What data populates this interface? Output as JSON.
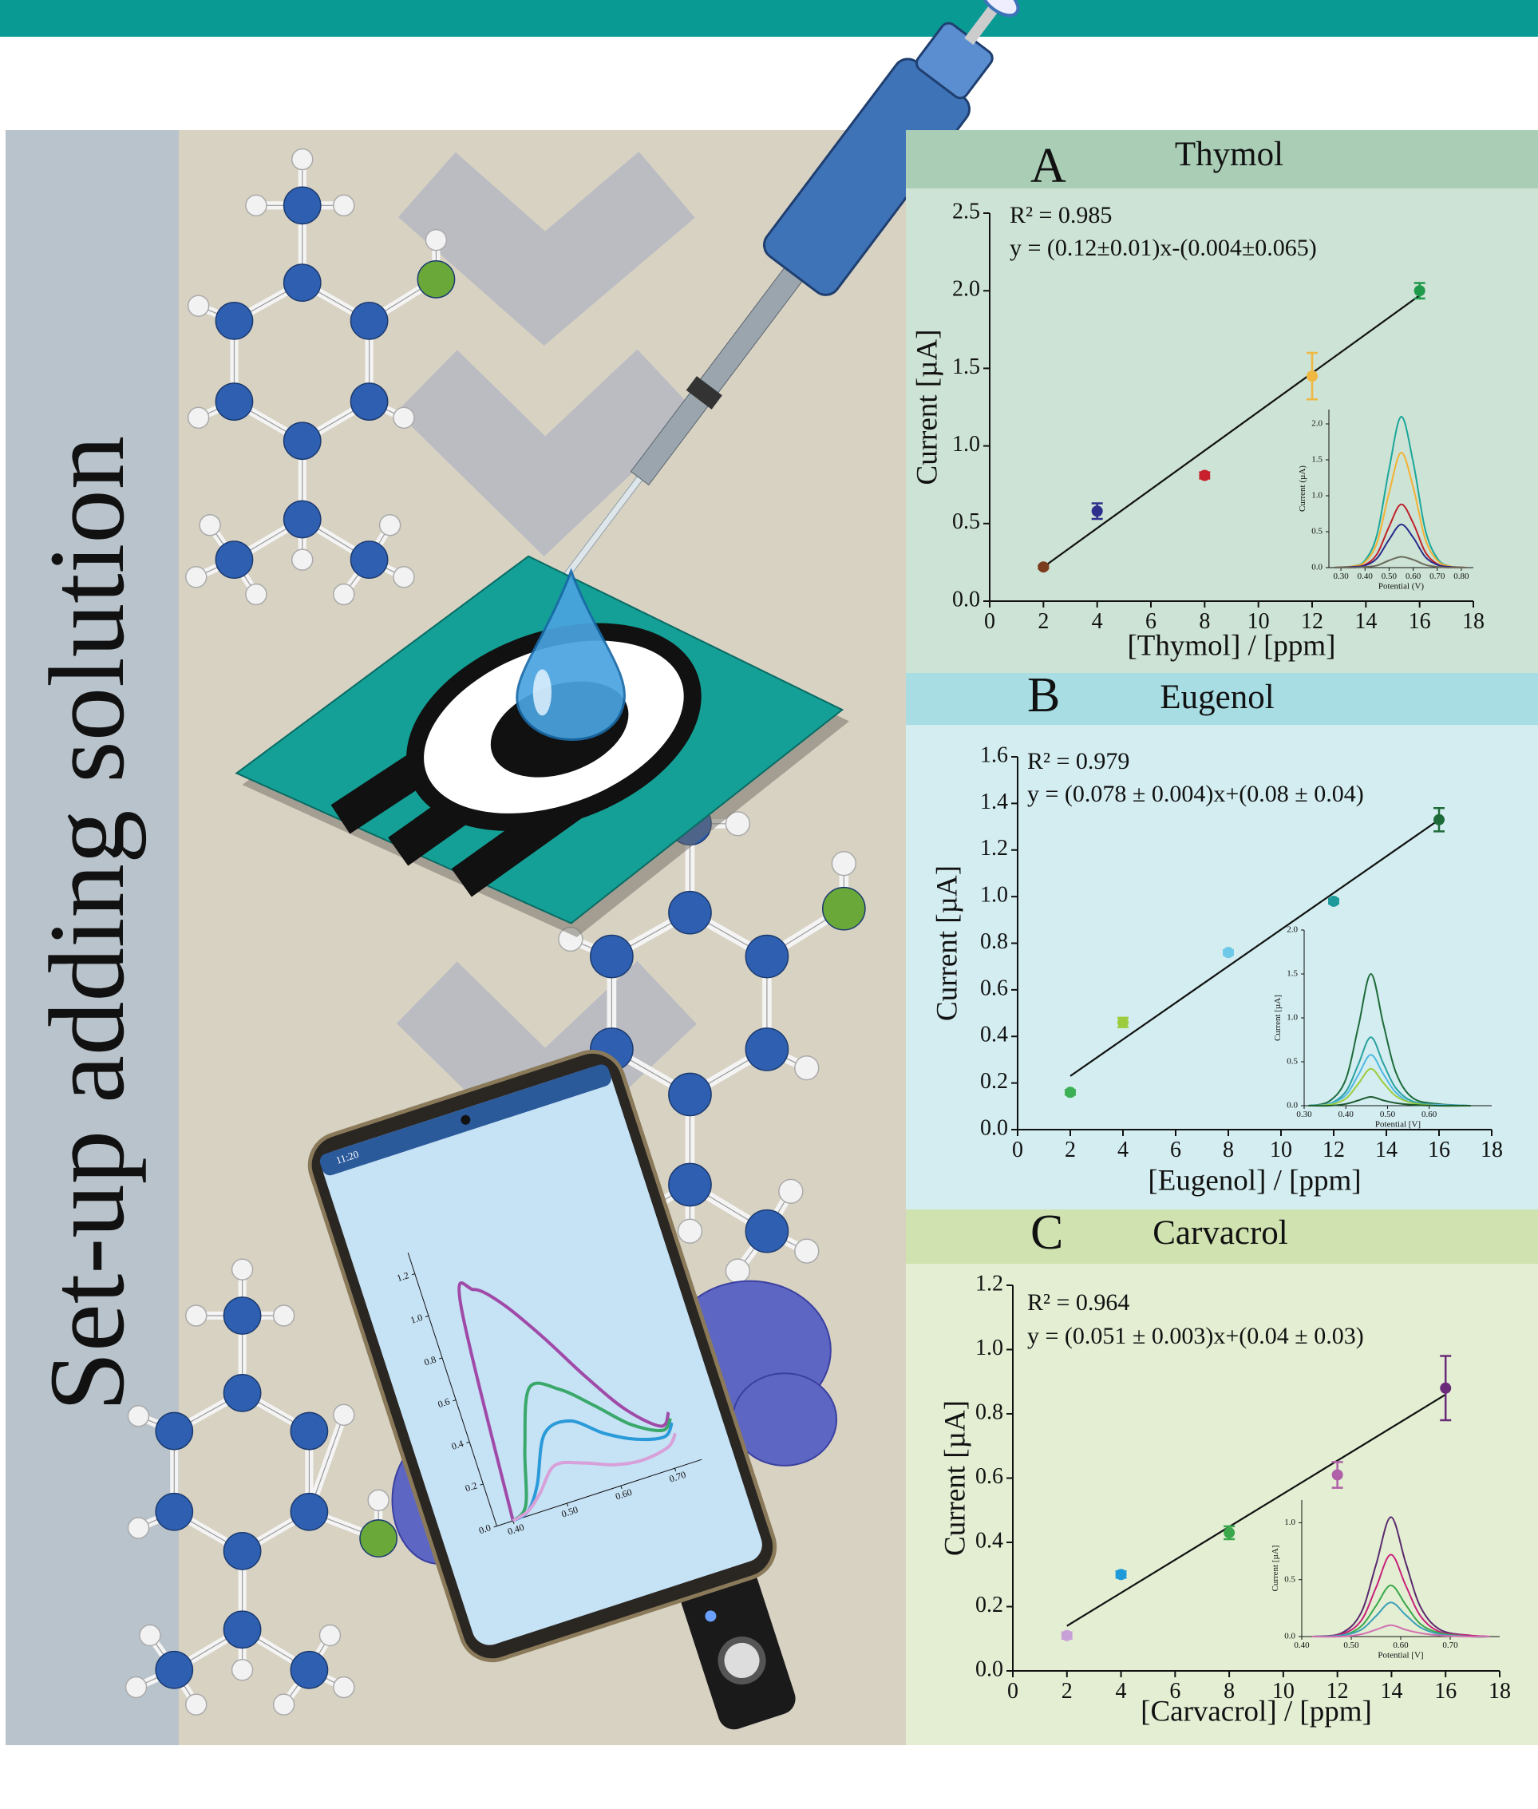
{
  "banner_text": "Set-up adding solution",
  "chart_data": [
    {
      "type": "scatter",
      "panel_label": "A",
      "title": "Thymol",
      "annotations": [
        "R² = 0.985",
        "y = (0.12±0.01)x-(0.004±0.065)"
      ],
      "xlabel": "[Thymol] / [ppm]",
      "ylabel": "Current [µA]",
      "x": [
        2,
        4,
        8,
        12,
        16
      ],
      "values": [
        0.22,
        0.58,
        0.81,
        1.45,
        2.0
      ],
      "errors": [
        0.01,
        0.05,
        0.02,
        0.15,
        0.05
      ],
      "colors": [
        "#7a3b1e",
        "#2e2e8c",
        "#c8202c",
        "#f0b840",
        "#1e9a4a"
      ],
      "fit": {
        "x": [
          2,
          16
        ],
        "values": [
          0.22,
          1.97
        ]
      },
      "xlim": [
        0,
        18
      ],
      "xticks": [
        0,
        2,
        4,
        6,
        8,
        10,
        12,
        14,
        16,
        18
      ],
      "ylim": [
        0,
        2.5
      ],
      "yticks": [
        {
          "value": 0,
          "label": "0.0"
        },
        0.5,
        {
          "value": 1,
          "label": "1.0"
        },
        1.5,
        {
          "value": 2,
          "label": "2.0"
        },
        2.5
      ]
    },
    {
      "type": "line",
      "xlabel": "Potential (V)",
      "ylabel": "Current (µA)",
      "xlim": [
        0.25,
        0.85
      ],
      "xticks": [
        {
          "value": 0.3,
          "label": "0.30"
        },
        {
          "value": 0.4,
          "label": "0.40"
        },
        {
          "value": 0.5,
          "label": "0.50"
        },
        {
          "value": 0.6,
          "label": "0.60"
        },
        {
          "value": 0.7,
          "label": "0.70"
        },
        {
          "value": 0.8,
          "label": "0.80"
        }
      ],
      "ylim": [
        0,
        2.2
      ],
      "yticks": [
        {
          "value": 0,
          "label": "0.0"
        },
        0.5,
        {
          "value": 1,
          "label": "1.0"
        },
        1.5,
        {
          "value": 2,
          "label": "2.0"
        }
      ],
      "x": [
        0.27,
        0.35,
        0.4,
        0.45,
        0.5,
        0.55,
        0.6,
        0.65,
        0.7,
        0.75,
        0.82
      ],
      "series": [
        {
          "color": "#1aa79a",
          "values": [
            0,
            0.02,
            0.1,
            0.46,
            1.37,
            2.1,
            1.47,
            0.53,
            0.13,
            0.02,
            0
          ]
        },
        {
          "color": "#f2b134",
          "values": [
            0,
            0.02,
            0.08,
            0.35,
            1.04,
            1.6,
            1.12,
            0.4,
            0.1,
            0.02,
            0
          ]
        },
        {
          "color": "#c0202a",
          "values": [
            0,
            0.01,
            0.04,
            0.19,
            0.57,
            0.88,
            0.62,
            0.22,
            0.05,
            0.01,
            0
          ]
        },
        {
          "color": "#2a2a8a",
          "values": [
            0,
            0.01,
            0.03,
            0.13,
            0.39,
            0.6,
            0.42,
            0.15,
            0.04,
            0.01,
            0
          ]
        },
        {
          "color": "#6b6b5a",
          "values": [
            0,
            0,
            0.01,
            0.03,
            0.1,
            0.15,
            0.11,
            0.04,
            0.01,
            0,
            0
          ]
        }
      ]
    },
    {
      "type": "scatter",
      "panel_label": "B",
      "title": "Eugenol",
      "annotations": [
        "R² = 0.979",
        "y = (0.078 ± 0.004)x+(0.08 ± 0.04)"
      ],
      "xlabel": "[Eugenol] / [ppm]",
      "ylabel": "Current [µA]",
      "x": [
        2,
        4,
        8,
        12,
        16
      ],
      "values": [
        0.16,
        0.46,
        0.76,
        0.98,
        1.33
      ],
      "errors": [
        0.01,
        0.02,
        0.01,
        0.01,
        0.05
      ],
      "colors": [
        "#3cb054",
        "#9ccc3c",
        "#6ec8e8",
        "#1e9a9a",
        "#1e6b3a"
      ],
      "fit": {
        "x": [
          2,
          16
        ],
        "values": [
          0.23,
          1.33
        ]
      },
      "xlim": [
        0,
        18
      ],
      "xticks": [
        0,
        2,
        4,
        6,
        8,
        10,
        12,
        14,
        16,
        18
      ],
      "ylim": [
        0,
        1.6
      ],
      "yticks": [
        {
          "value": 0,
          "label": "0.0"
        },
        0.2,
        0.4,
        0.6,
        0.8,
        {
          "value": 1,
          "label": "1.0"
        },
        1.2,
        1.4,
        1.6
      ]
    },
    {
      "type": "line",
      "xlabel": "Potential [V]",
      "ylabel": "Current [µA]",
      "xlim": [
        0.3,
        0.75
      ],
      "xticks": [
        {
          "value": 0.3,
          "label": "0.30"
        },
        {
          "value": 0.4,
          "label": "0.40"
        },
        {
          "value": 0.5,
          "label": "0.50"
        },
        {
          "value": 0.6,
          "label": "0.60"
        }
      ],
      "ylim": [
        0,
        2.0
      ],
      "yticks": [
        {
          "value": 0,
          "label": "0.0"
        },
        0.5,
        {
          "value": 1,
          "label": "1.0"
        },
        1.5,
        {
          "value": 2,
          "label": "2.0"
        }
      ],
      "x": [
        0.31,
        0.36,
        0.4,
        0.43,
        0.46,
        0.49,
        0.52,
        0.56,
        0.62,
        0.7
      ],
      "series": [
        {
          "color": "#1e6b3a",
          "values": [
            0,
            0.05,
            0.3,
            0.9,
            1.5,
            0.93,
            0.38,
            0.09,
            0.02,
            0
          ]
        },
        {
          "color": "#2aa0a0",
          "values": [
            0,
            0.02,
            0.16,
            0.47,
            0.78,
            0.48,
            0.2,
            0.05,
            0.01,
            0
          ]
        },
        {
          "color": "#4fb8e0",
          "values": [
            0,
            0.02,
            0.12,
            0.35,
            0.58,
            0.36,
            0.15,
            0.03,
            0.01,
            0
          ]
        },
        {
          "color": "#9ccc3c",
          "values": [
            0,
            0.01,
            0.08,
            0.25,
            0.42,
            0.26,
            0.11,
            0.03,
            0,
            0
          ]
        },
        {
          "color": "#1e5a30",
          "values": [
            0,
            0,
            0.02,
            0.06,
            0.1,
            0.06,
            0.03,
            0.01,
            0,
            0
          ]
        }
      ]
    },
    {
      "type": "scatter",
      "panel_label": "C",
      "title": "Carvacrol",
      "annotations": [
        "R² = 0.964",
        "y = (0.051 ± 0.003)x+(0.04 ± 0.03)"
      ],
      "xlabel": "[Carvacrol] / [ppm]",
      "ylabel": "Current [µA]",
      "x": [
        2,
        4,
        8,
        12,
        16
      ],
      "values": [
        0.11,
        0.3,
        0.43,
        0.61,
        0.88
      ],
      "errors": [
        0.01,
        0.01,
        0.02,
        0.04,
        0.1
      ],
      "colors": [
        "#c8a0d8",
        "#1e9ad8",
        "#3aa84a",
        "#b060a8",
        "#6a2a7a"
      ],
      "fit": {
        "x": [
          2,
          16
        ],
        "values": [
          0.14,
          0.86
        ]
      },
      "xlim": [
        0,
        18
      ],
      "xticks": [
        0,
        2,
        4,
        6,
        8,
        10,
        12,
        14,
        16,
        18
      ],
      "ylim": [
        0,
        1.2
      ],
      "yticks": [
        {
          "value": 0,
          "label": "0.0"
        },
        0.2,
        0.4,
        0.6,
        0.8,
        {
          "value": 1,
          "label": "1.0"
        },
        1.2
      ]
    },
    {
      "type": "line",
      "xlabel": "Potential [V]",
      "ylabel": "Current [µA]",
      "xlim": [
        0.4,
        0.8
      ],
      "xticks": [
        {
          "value": 0.4,
          "label": "0.40"
        },
        {
          "value": 0.5,
          "label": "0.50"
        },
        {
          "value": 0.6,
          "label": "0.60"
        },
        {
          "value": 0.7,
          "label": "0.70"
        }
      ],
      "ylim": [
        0,
        1.2
      ],
      "yticks": [
        {
          "value": 0,
          "label": "0.0"
        },
        0.5,
        {
          "value": 1,
          "label": "1.0"
        }
      ],
      "x": [
        0.42,
        0.48,
        0.52,
        0.55,
        0.58,
        0.61,
        0.64,
        0.68,
        0.74,
        0.78
      ],
      "series": [
        {
          "color": "#5a2a6e",
          "values": [
            0,
            0.03,
            0.21,
            0.63,
            1.05,
            0.65,
            0.26,
            0.06,
            0.01,
            0
          ]
        },
        {
          "color": "#c8207a",
          "values": [
            0,
            0.02,
            0.14,
            0.43,
            0.72,
            0.45,
            0.18,
            0.04,
            0.01,
            0
          ]
        },
        {
          "color": "#3aa84a",
          "values": [
            0,
            0.01,
            0.09,
            0.27,
            0.45,
            0.28,
            0.11,
            0.03,
            0,
            0
          ]
        },
        {
          "color": "#3aa0b8",
          "values": [
            0,
            0.01,
            0.06,
            0.18,
            0.3,
            0.19,
            0.08,
            0.02,
            0,
            0
          ]
        },
        {
          "color": "#d070b0",
          "values": [
            0,
            0,
            0.02,
            0.06,
            0.1,
            0.06,
            0.03,
            0.01,
            0,
            0
          ]
        }
      ]
    },
    {
      "type": "line",
      "status_time": "11:20",
      "xlim": [
        0.37,
        0.75
      ],
      "xticks": [
        {
          "value": 0.4,
          "label": "0.40"
        },
        {
          "value": 0.5,
          "label": "0.50"
        },
        {
          "value": 0.6,
          "label": "0.60"
        },
        {
          "value": 0.7,
          "label": "0.70"
        }
      ],
      "ylim": [
        0,
        1.3
      ],
      "yticks": [
        {
          "value": 0,
          "label": "0.0"
        },
        0.2,
        0.4,
        0.6,
        0.8,
        {
          "value": 1,
          "label": "1.0"
        },
        1.2
      ],
      "x": [
        0.4,
        0.43,
        0.46,
        0.5,
        0.55,
        0.6,
        0.65,
        0.7,
        0.72
      ],
      "series": [
        {
          "color": "#a04aa8",
          "values": [
            0,
            1.0,
            1.05,
            0.95,
            0.75,
            0.52,
            0.32,
            0.2,
            0.25
          ]
        },
        {
          "color": "#3aa86a",
          "values": [
            0,
            0.05,
            0.3,
            0.55,
            0.5,
            0.38,
            0.25,
            0.18,
            0.22
          ]
        },
        {
          "color": "#2a9ad8",
          "values": [
            0,
            0.02,
            0.12,
            0.33,
            0.35,
            0.25,
            0.18,
            0.15,
            0.2
          ]
        },
        {
          "color": "#d8a0d8",
          "values": [
            0,
            0.02,
            0.08,
            0.18,
            0.15,
            0.1,
            0.08,
            0.1,
            0.15
          ]
        }
      ]
    }
  ]
}
